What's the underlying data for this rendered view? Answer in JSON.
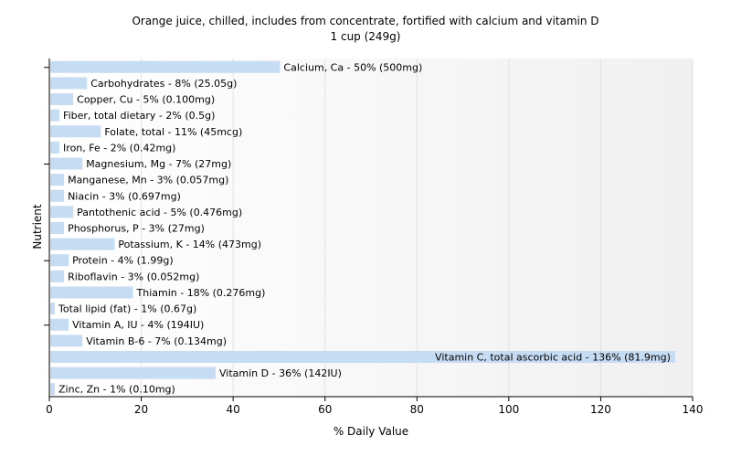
{
  "chart_data": {
    "type": "bar",
    "orientation": "horizontal",
    "title": "Orange juice, chilled, includes from concentrate, fortified with calcium and vitamin D",
    "subtitle": "1 cup (249g)",
    "xlabel": "% Daily Value",
    "ylabel": "Nutrient",
    "xlim": [
      0,
      140
    ],
    "xticks": [
      0,
      20,
      40,
      60,
      80,
      100,
      120,
      140
    ],
    "grid": true,
    "bar_color": "#c6dcf3",
    "categories": [
      "Calcium, Ca",
      "Carbohydrates",
      "Copper, Cu",
      "Fiber, total dietary",
      "Folate, total",
      "Iron, Fe",
      "Magnesium, Mg",
      "Manganese, Mn",
      "Niacin",
      "Pantothenic acid",
      "Phosphorus, P",
      "Potassium, K",
      "Protein",
      "Riboflavin",
      "Thiamin",
      "Total lipid (fat)",
      "Vitamin A, IU",
      "Vitamin B-6",
      "Vitamin C, total ascorbic acid",
      "Vitamin D",
      "Zinc, Zn"
    ],
    "values": [
      50,
      8,
      5,
      2,
      11,
      2,
      7,
      3,
      3,
      5,
      3,
      14,
      4,
      3,
      18,
      1,
      4,
      7,
      136,
      36,
      1
    ],
    "labels": [
      "Calcium, Ca - 50% (500mg)",
      "Carbohydrates - 8% (25.05g)",
      "Copper, Cu - 5% (0.100mg)",
      "Fiber, total dietary - 2% (0.5g)",
      "Folate, total - 11% (45mcg)",
      "Iron, Fe - 2% (0.42mg)",
      "Magnesium, Mg - 7% (27mg)",
      "Manganese, Mn - 3% (0.057mg)",
      "Niacin - 3% (0.697mg)",
      "Pantothenic acid - 5% (0.476mg)",
      "Phosphorus, P - 3% (27mg)",
      "Potassium, K - 14% (473mg)",
      "Protein - 4% (1.99g)",
      "Riboflavin - 3% (0.052mg)",
      "Thiamin - 18% (0.276mg)",
      "Total lipid (fat) - 1% (0.67g)",
      "Vitamin A, IU - 4% (194IU)",
      "Vitamin B-6 - 7% (0.134mg)",
      "Vitamin C, total ascorbic acid - 136% (81.9mg)",
      "Vitamin D - 36% (142IU)",
      "Zinc, Zn - 1% (0.10mg)"
    ]
  }
}
